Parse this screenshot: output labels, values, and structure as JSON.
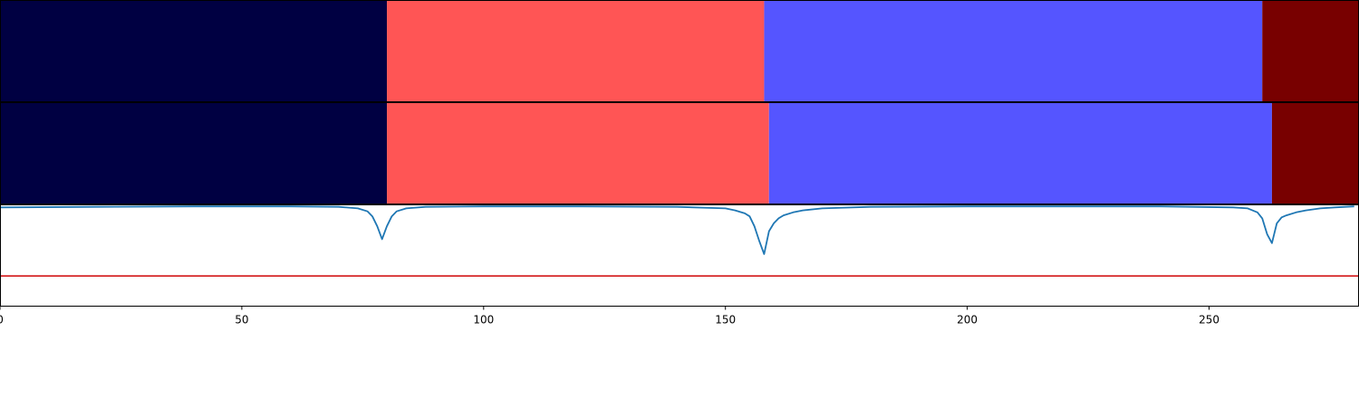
{
  "chart_data": [
    {
      "type": "heatmap",
      "name": "segmentation-band-1",
      "colormap": "seismic",
      "segments": [
        {
          "start": 0,
          "end": 80,
          "color": "#000042"
        },
        {
          "start": 80,
          "end": 158,
          "color": "#ff5555"
        },
        {
          "start": 158,
          "end": 261,
          "color": "#5555ff"
        },
        {
          "start": 261,
          "end": 281,
          "color": "#780000"
        }
      ]
    },
    {
      "type": "heatmap",
      "name": "segmentation-band-2",
      "colormap": "seismic",
      "segments": [
        {
          "start": 0,
          "end": 80,
          "color": "#000042"
        },
        {
          "start": 80,
          "end": 159,
          "color": "#ff5555"
        },
        {
          "start": 159,
          "end": 263,
          "color": "#5555ff"
        },
        {
          "start": 263,
          "end": 281,
          "color": "#780000"
        }
      ]
    },
    {
      "type": "line",
      "xlim": [
        0,
        281
      ],
      "ylim": [
        -1.0,
        0.02
      ],
      "x_ticks": [
        0,
        50,
        100,
        150,
        200,
        250
      ],
      "grid": false,
      "series": [
        {
          "color": "#1f77b4",
          "x": [
            0,
            20,
            40,
            60,
            70,
            74,
            76,
            77,
            78,
            79,
            80,
            81,
            82,
            84,
            88,
            100,
            120,
            140,
            150,
            152,
            154,
            155,
            156,
            157,
            158,
            159,
            160,
            161,
            162,
            164,
            166,
            170,
            180,
            200,
            220,
            240,
            255,
            258,
            260,
            261,
            262,
            263,
            264,
            265,
            266,
            268,
            270,
            273,
            276,
            280
          ],
          "y": [
            -0.01,
            -0.005,
            0,
            0,
            -0.005,
            -0.02,
            -0.05,
            -0.1,
            -0.2,
            -0.33,
            -0.2,
            -0.1,
            -0.05,
            -0.02,
            -0.005,
            0,
            0,
            -0.005,
            -0.02,
            -0.04,
            -0.07,
            -0.1,
            -0.2,
            -0.35,
            -0.48,
            -0.25,
            -0.17,
            -0.12,
            -0.09,
            -0.06,
            -0.04,
            -0.02,
            -0.005,
            0,
            0,
            0,
            -0.01,
            -0.02,
            -0.06,
            -0.12,
            -0.28,
            -0.37,
            -0.17,
            -0.11,
            -0.09,
            -0.06,
            -0.04,
            -0.02,
            -0.01,
            0
          ]
        },
        {
          "color": "#d62728",
          "x": [
            0,
            281
          ],
          "y": [
            -0.7,
            -0.7
          ]
        }
      ]
    }
  ]
}
